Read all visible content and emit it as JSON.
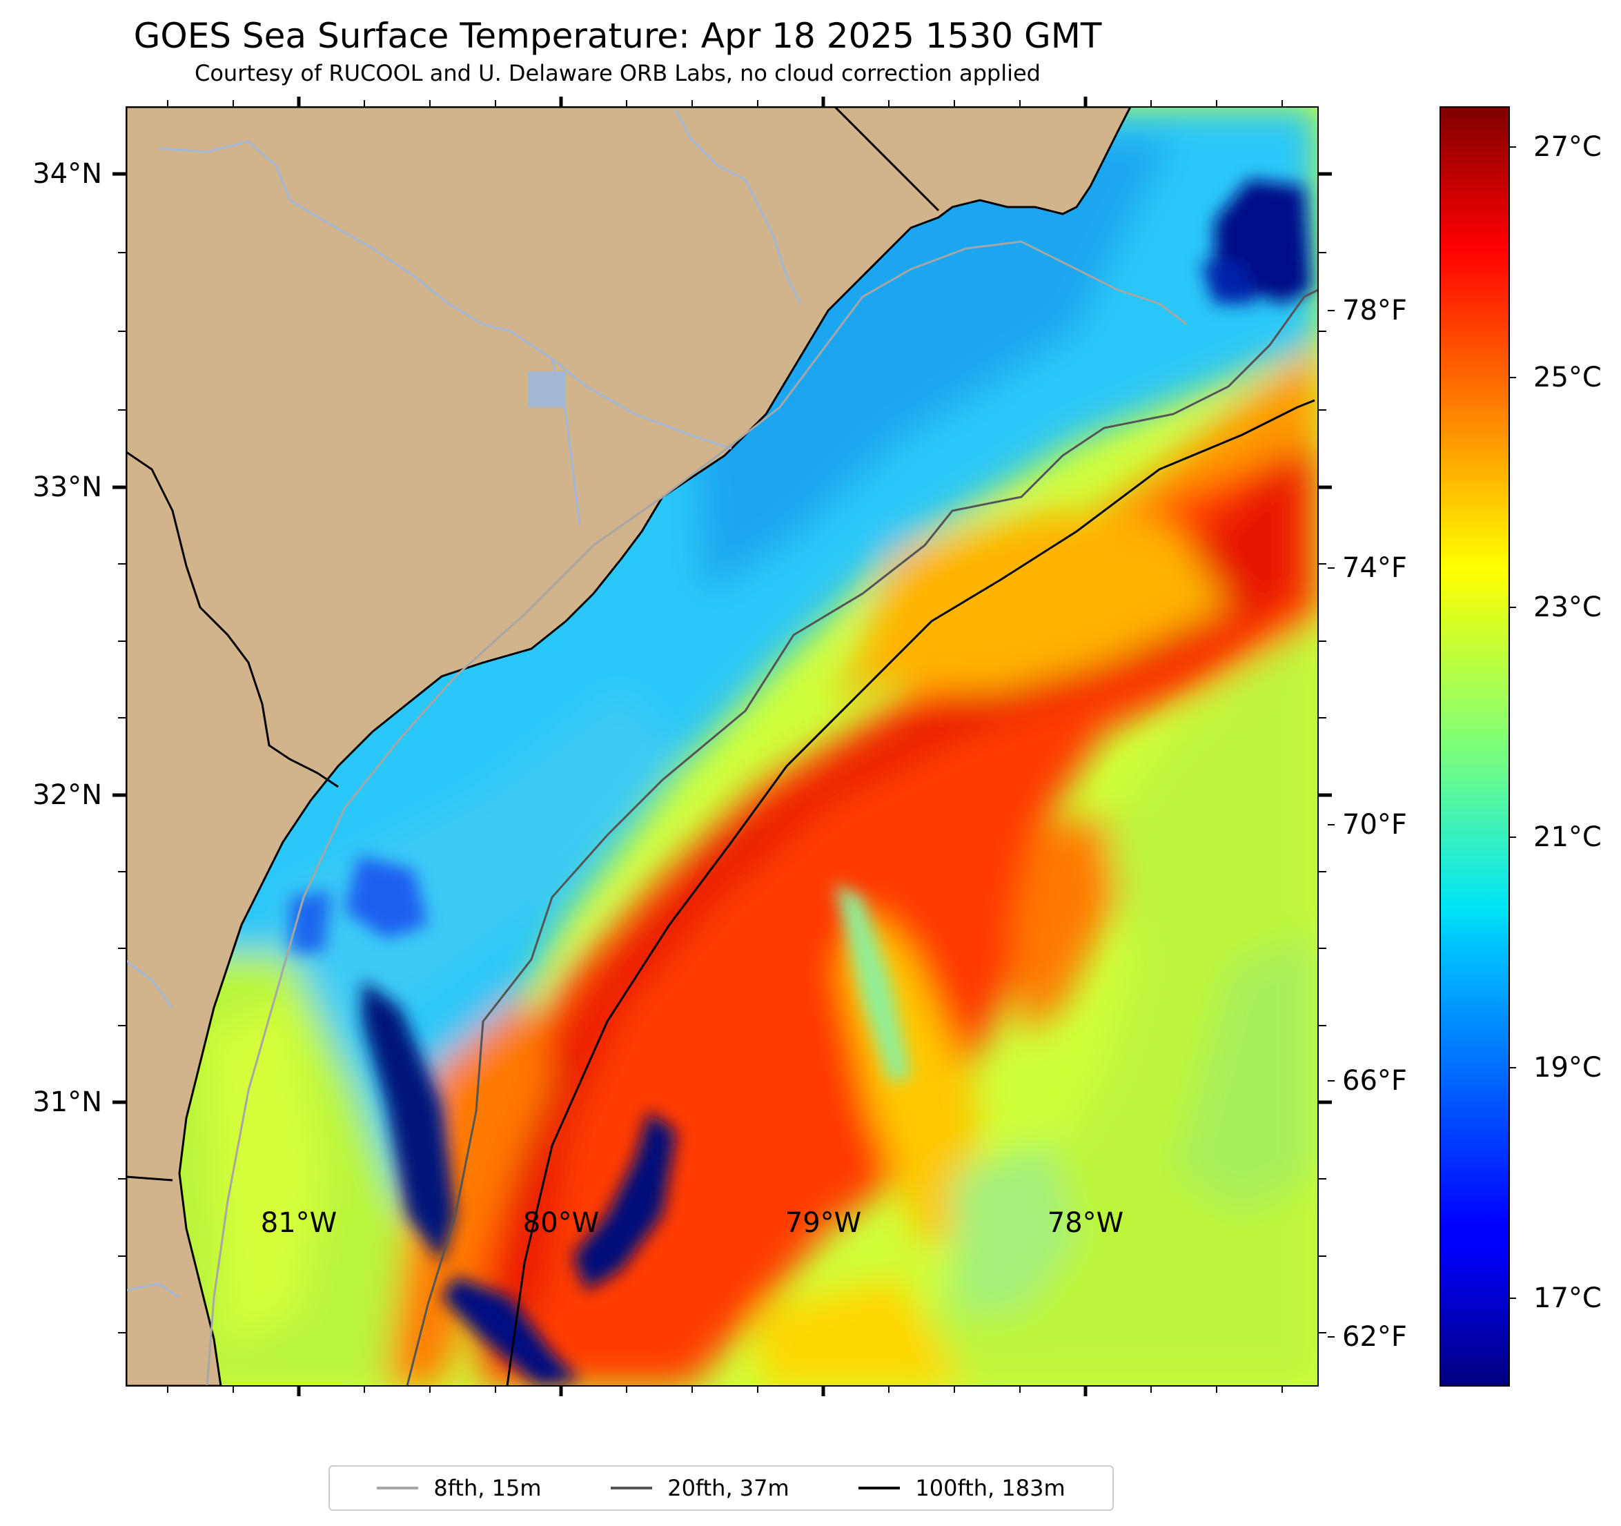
{
  "title": "GOES Sea Surface Temperature: Apr 18 2025 1530 GMT",
  "subtitle": "Courtesy of RUCOOL and U. Delaware ORB Labs, no cloud correction applied",
  "map": {
    "land_color": "#d2b48c",
    "river_color": "#a3b7d6",
    "lat_labels": [
      "34°N",
      "33°N",
      "32°N",
      "31°N"
    ],
    "lon_labels": [
      "81°W",
      "80°W",
      "79°W",
      "78°W"
    ]
  },
  "colorbar": {
    "colormap": "jet",
    "celsius_labels": [
      "27°C",
      "25°C",
      "23°C",
      "21°C",
      "19°C",
      "17°C"
    ],
    "fahrenheit_labels": [
      "78°F",
      "74°F",
      "70°F",
      "66°F",
      "62°F"
    ]
  },
  "legend": {
    "items": [
      {
        "label": "8fth, 15m",
        "color": "#a6a6a6"
      },
      {
        "label": "20fth, 37m",
        "color": "#555555"
      },
      {
        "label": "100fth, 183m",
        "color": "#000000"
      }
    ]
  }
}
